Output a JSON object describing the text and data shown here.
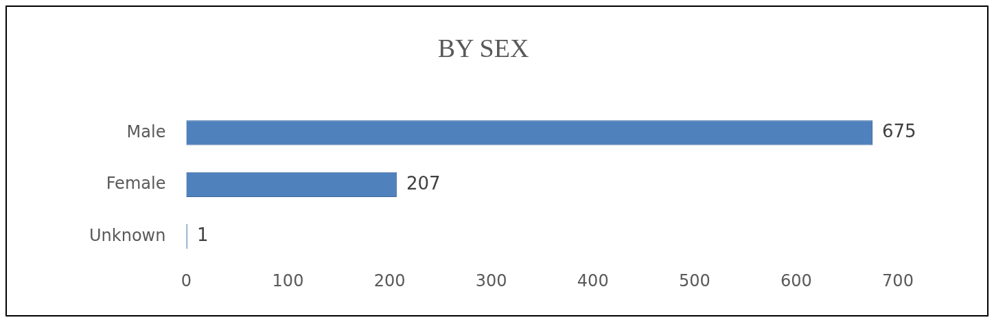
{
  "chart_data": {
    "type": "bar",
    "title": "BY SEX",
    "orientation": "horizontal",
    "categories": [
      "Male",
      "Female",
      "Unknown"
    ],
    "values": [
      675,
      207,
      1
    ],
    "color": "#4f81bd",
    "xlim": [
      0,
      700
    ],
    "xticks": [
      0,
      100,
      200,
      300,
      400,
      500,
      600,
      700
    ],
    "grid": false,
    "legend": false,
    "data_labels": true
  }
}
